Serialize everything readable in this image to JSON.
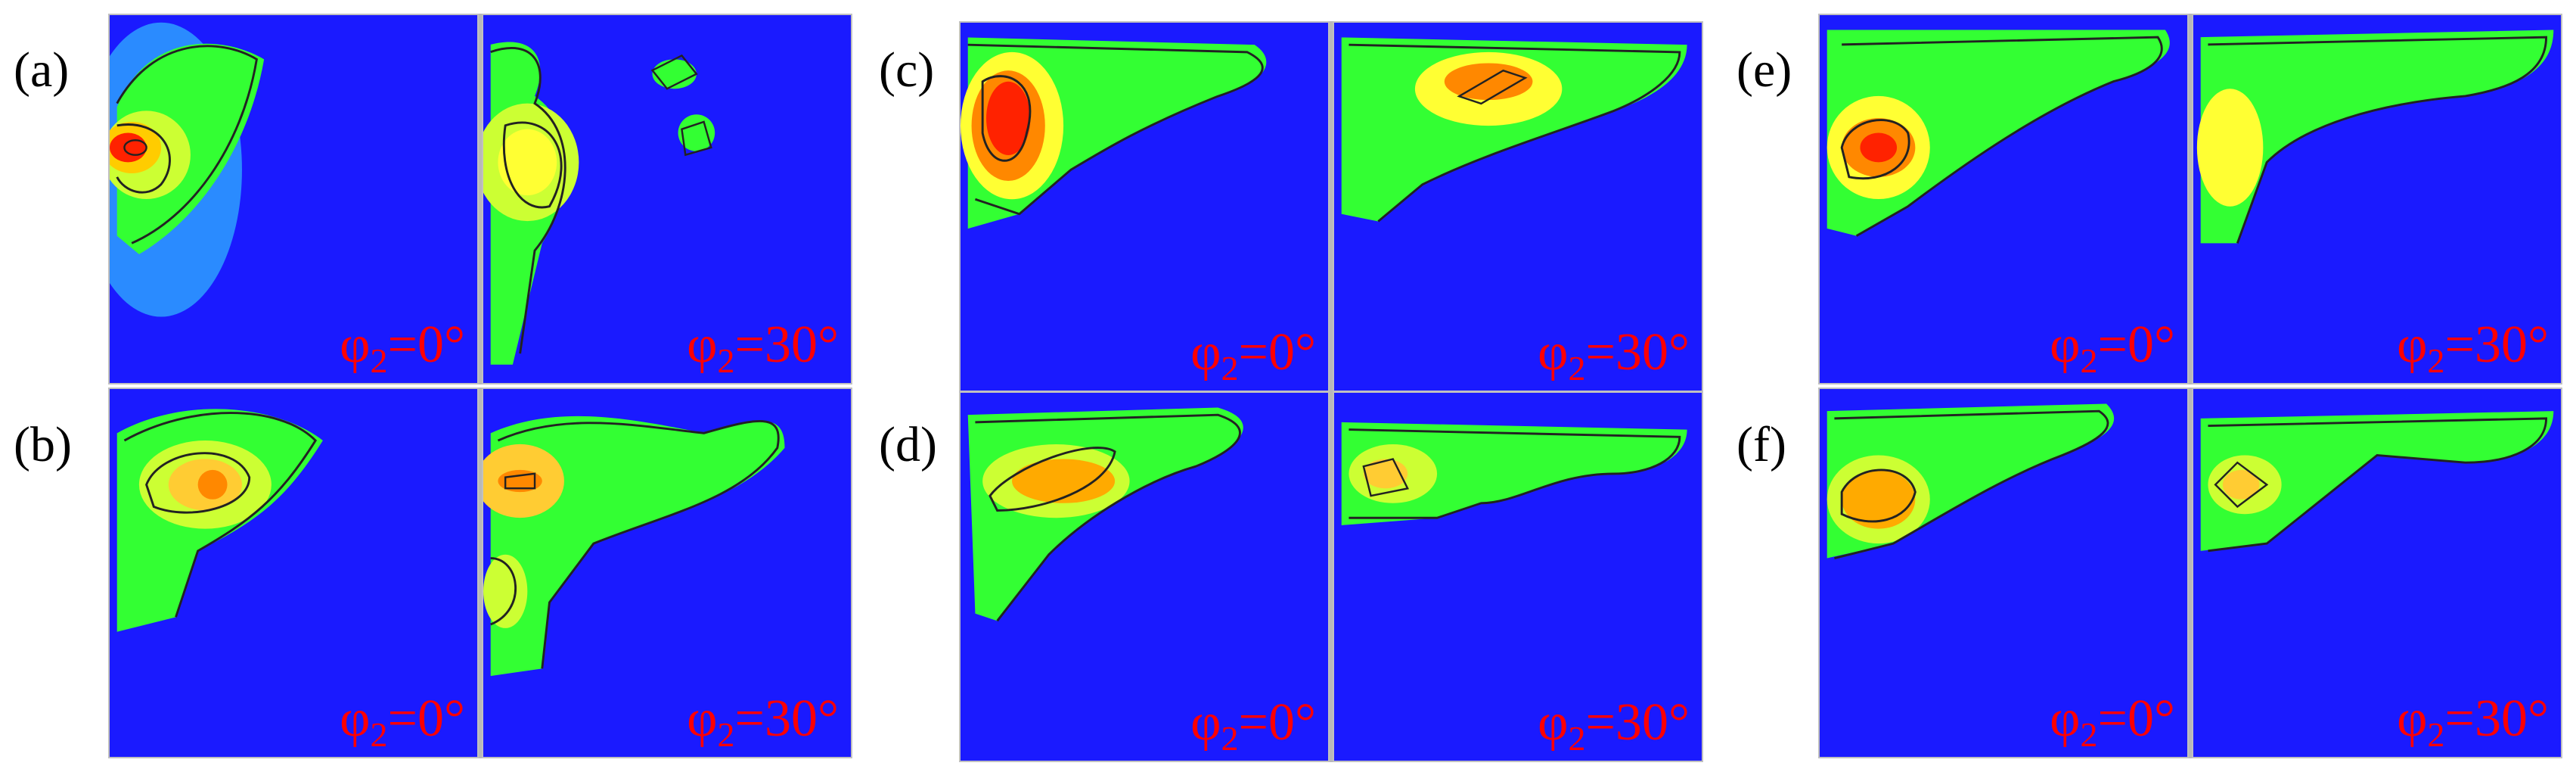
{
  "panels": [
    {
      "label": "(a)",
      "maps": [
        {
          "phi_symbol": "φ",
          "phi_sub": "2",
          "phi_value": "=0°"
        },
        {
          "phi_symbol": "φ",
          "phi_sub": "2",
          "phi_value": "=30°"
        }
      ]
    },
    {
      "label": "(b)",
      "maps": [
        {
          "phi_symbol": "φ",
          "phi_sub": "2",
          "phi_value": "=0°"
        },
        {
          "phi_symbol": "φ",
          "phi_sub": "2",
          "phi_value": "=30°"
        }
      ]
    },
    {
      "label": "(c)",
      "maps": [
        {
          "phi_symbol": "φ",
          "phi_sub": "2",
          "phi_value": "=0°"
        },
        {
          "phi_symbol": "φ",
          "phi_sub": "2",
          "phi_value": "=30°"
        }
      ]
    },
    {
      "label": "(d)",
      "maps": [
        {
          "phi_symbol": "φ",
          "phi_sub": "2",
          "phi_value": "=0°"
        },
        {
          "phi_symbol": "φ",
          "phi_sub": "2",
          "phi_value": "=30°"
        }
      ]
    },
    {
      "label": "(e)",
      "maps": [
        {
          "phi_symbol": "φ",
          "phi_sub": "2",
          "phi_value": "=0°"
        },
        {
          "phi_symbol": "φ",
          "phi_sub": "2",
          "phi_value": "=30°"
        }
      ]
    },
    {
      "label": "(f)",
      "maps": [
        {
          "phi_symbol": "φ",
          "phi_sub": "2",
          "phi_value": "=0°"
        },
        {
          "phi_symbol": "φ",
          "phi_sub": "2",
          "phi_value": "=30°"
        }
      ]
    }
  ],
  "colors": {
    "label": "#ff0000",
    "background": "#1a1aff",
    "low": "#1a1aff",
    "mid": "#33ff33",
    "high": "#ffff00",
    "peak": "#ff2200"
  }
}
